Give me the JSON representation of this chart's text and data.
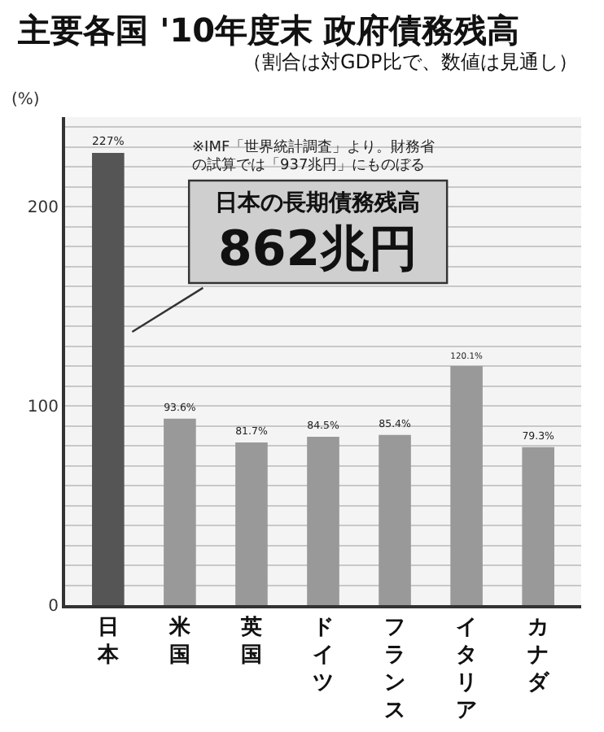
{
  "chart_data": {
    "type": "bar",
    "title": "主要各国 '10年度末 政府債務残高",
    "subtitle": "（割合は対GDP比で、数値は見通し）",
    "ylabel": "(%)",
    "categories": [
      "日本",
      "米国",
      "英国",
      "ドイツ",
      "フランス",
      "イタリア",
      "カナダ"
    ],
    "values": [
      227,
      93.6,
      81.7,
      84.5,
      85.4,
      120.1,
      79.3
    ],
    "colors": [
      "#555555",
      "#999999",
      "#999999",
      "#999999",
      "#999999",
      "#999999",
      "#999999"
    ],
    "value_labels": [
      "227%",
      "93.6%",
      "81.7%",
      "84.5%",
      "85.4%",
      "120.1%",
      "79.3%"
    ],
    "ylim": [
      0,
      245
    ],
    "yticks": [
      0,
      {
        "value": 10,
        "label": null
      },
      {
        "value": 20,
        "label": null
      },
      {
        "value": 30,
        "label": null
      },
      {
        "value": 40,
        "label": null
      },
      {
        "value": 50,
        "label": null
      },
      {
        "value": 60,
        "label": null
      },
      {
        "value": 70,
        "label": null
      },
      {
        "value": 80,
        "label": null
      },
      {
        "value": 90,
        "label": null
      },
      100,
      {
        "value": 110,
        "label": null
      },
      {
        "value": 120,
        "label": null
      },
      {
        "value": 130,
        "label": null
      },
      {
        "value": 140,
        "label": null
      },
      {
        "value": 150,
        "label": null
      },
      {
        "value": 160,
        "label": null
      },
      {
        "value": 170,
        "label": null
      },
      {
        "value": 180,
        "label": null
      },
      {
        "value": 190,
        "label": null
      },
      200,
      {
        "value": 210,
        "label": null
      },
      {
        "value": 220,
        "label": null
      },
      {
        "value": 230,
        "label": null
      },
      {
        "value": 240,
        "label": null
      }
    ],
    "grid": true,
    "annotations": [
      "※IMF「世界統計調査」より。財務省の試算では「937兆円」にものぼる",
      "日本の長期債務残高\n862兆円"
    ]
  }
}
